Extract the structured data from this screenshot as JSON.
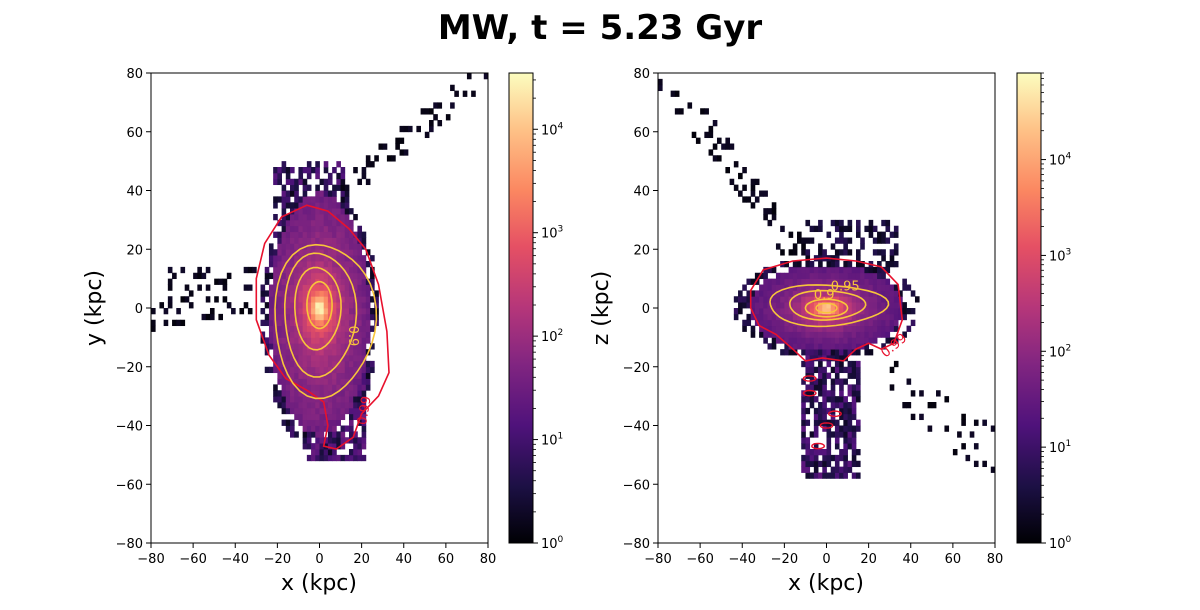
{
  "figure": {
    "title": "MW, t =  5.23 Gyr"
  },
  "chart_data": [
    {
      "type": "heatmap",
      "panel": "left",
      "xlabel": "x (kpc)",
      "ylabel": "y (kpc)",
      "xlim": [
        -80,
        80
      ],
      "ylim": [
        -80,
        80
      ],
      "xticks": [
        -80,
        -60,
        -40,
        -20,
        0,
        20,
        40,
        60,
        80
      ],
      "yticks": [
        -80,
        -60,
        -40,
        -20,
        0,
        20,
        40,
        60,
        80
      ],
      "colorscale": "magma",
      "color_scale_type": "log",
      "colorbar_range": [
        1,
        35000
      ],
      "colorbar_ticks": [
        {
          "base": "10",
          "exp": "0",
          "value": 1
        },
        {
          "base": "10",
          "exp": "1",
          "value": 10
        },
        {
          "base": "10",
          "exp": "2",
          "value": 100
        },
        {
          "base": "10",
          "exp": "3",
          "value": 1000
        },
        {
          "base": "10",
          "exp": "4",
          "value": 10000
        }
      ],
      "contour_levels": [
        {
          "label": "0.99",
          "color": "#e8112d"
        },
        {
          "label": "0.9",
          "color": "#f8c53a"
        }
      ]
    },
    {
      "type": "heatmap",
      "panel": "right",
      "xlabel": "x (kpc)",
      "ylabel": "z (kpc)",
      "xlim": [
        -80,
        80
      ],
      "ylim": [
        -80,
        80
      ],
      "xticks": [
        -80,
        -60,
        -40,
        -20,
        0,
        20,
        40,
        60,
        80
      ],
      "yticks": [
        -80,
        -60,
        -40,
        -20,
        0,
        20,
        40,
        60,
        80
      ],
      "colorscale": "magma",
      "color_scale_type": "log",
      "colorbar_range": [
        1,
        80000
      ],
      "colorbar_ticks": [
        {
          "base": "10",
          "exp": "0",
          "value": 1
        },
        {
          "base": "10",
          "exp": "1",
          "value": 10
        },
        {
          "base": "10",
          "exp": "2",
          "value": 100
        },
        {
          "base": "10",
          "exp": "3",
          "value": 1000
        },
        {
          "base": "10",
          "exp": "4",
          "value": 10000
        }
      ],
      "contour_levels": [
        {
          "label": "0.99",
          "color": "#e8112d"
        },
        {
          "label": "0.95",
          "color": "#f8c53a"
        },
        {
          "label": "0.9",
          "color": "#f8c53a"
        }
      ]
    }
  ]
}
